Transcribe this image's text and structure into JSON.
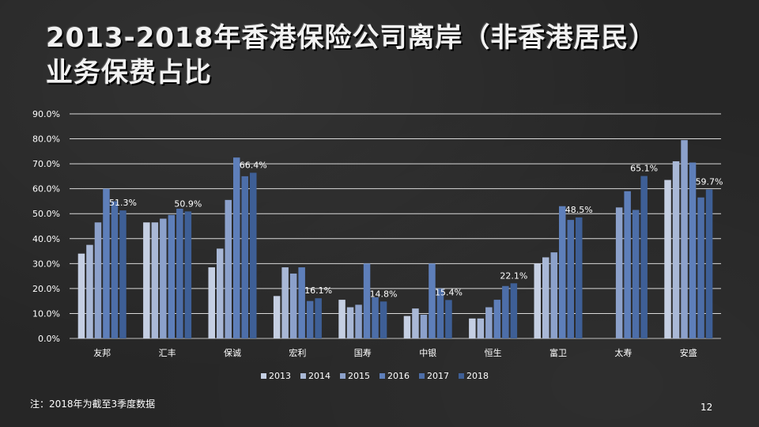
{
  "title_line1": "2013-2018年香港保险公司离岸（非香港居民）",
  "title_line2": "业务保费占比",
  "note": "注：2018年为截至3季度数据",
  "page_number": "12",
  "chart_data": {
    "type": "bar",
    "categories": [
      "友邦",
      "汇丰",
      "保诚",
      "宏利",
      "国寿",
      "中银",
      "恒生",
      "富卫",
      "太寿",
      "安盛"
    ],
    "ylim": [
      0,
      90
    ],
    "yticks": [
      "0.0%",
      "10.0%",
      "20.0%",
      "30.0%",
      "40.0%",
      "50.0%",
      "60.0%",
      "70.0%",
      "80.0%",
      "90.0%"
    ],
    "grid": true,
    "legend_position": "bottom",
    "series": [
      {
        "name": "2013",
        "color": "#c5cfe3",
        "values": [
          34,
          46.5,
          28.5,
          17,
          15.5,
          9,
          8,
          30,
          null,
          63.5
        ]
      },
      {
        "name": "2014",
        "color": "#a9b8d6",
        "values": [
          37.5,
          46.5,
          36,
          28.5,
          12.5,
          12,
          8,
          32.5,
          null,
          71
        ]
      },
      {
        "name": "2015",
        "color": "#8ca1cb",
        "values": [
          46.5,
          48,
          55.5,
          26,
          13.5,
          9.5,
          12.5,
          34.5,
          52.5,
          79.5
        ]
      },
      {
        "name": "2016",
        "color": "#5e7fba",
        "values": [
          60,
          49.5,
          72.5,
          28.5,
          30,
          30,
          15.5,
          53,
          59,
          70.5
        ]
      },
      {
        "name": "2017",
        "color": "#4d6ea8",
        "values": [
          55,
          52,
          65,
          15,
          16.5,
          20,
          21,
          47.5,
          51.5,
          56.5
        ]
      },
      {
        "name": "2018",
        "color": "#3e5f96",
        "values": [
          51.3,
          50.9,
          66.4,
          16.1,
          14.8,
          15.4,
          22.1,
          48.5,
          65.1,
          59.7
        ]
      }
    ],
    "data_labels": [
      "51.3%",
      "50.9%",
      "66.4%",
      "16.1%",
      "14.8%",
      "15.4%",
      "22.1%",
      "48.5%",
      "65.1%",
      "59.7%"
    ]
  }
}
